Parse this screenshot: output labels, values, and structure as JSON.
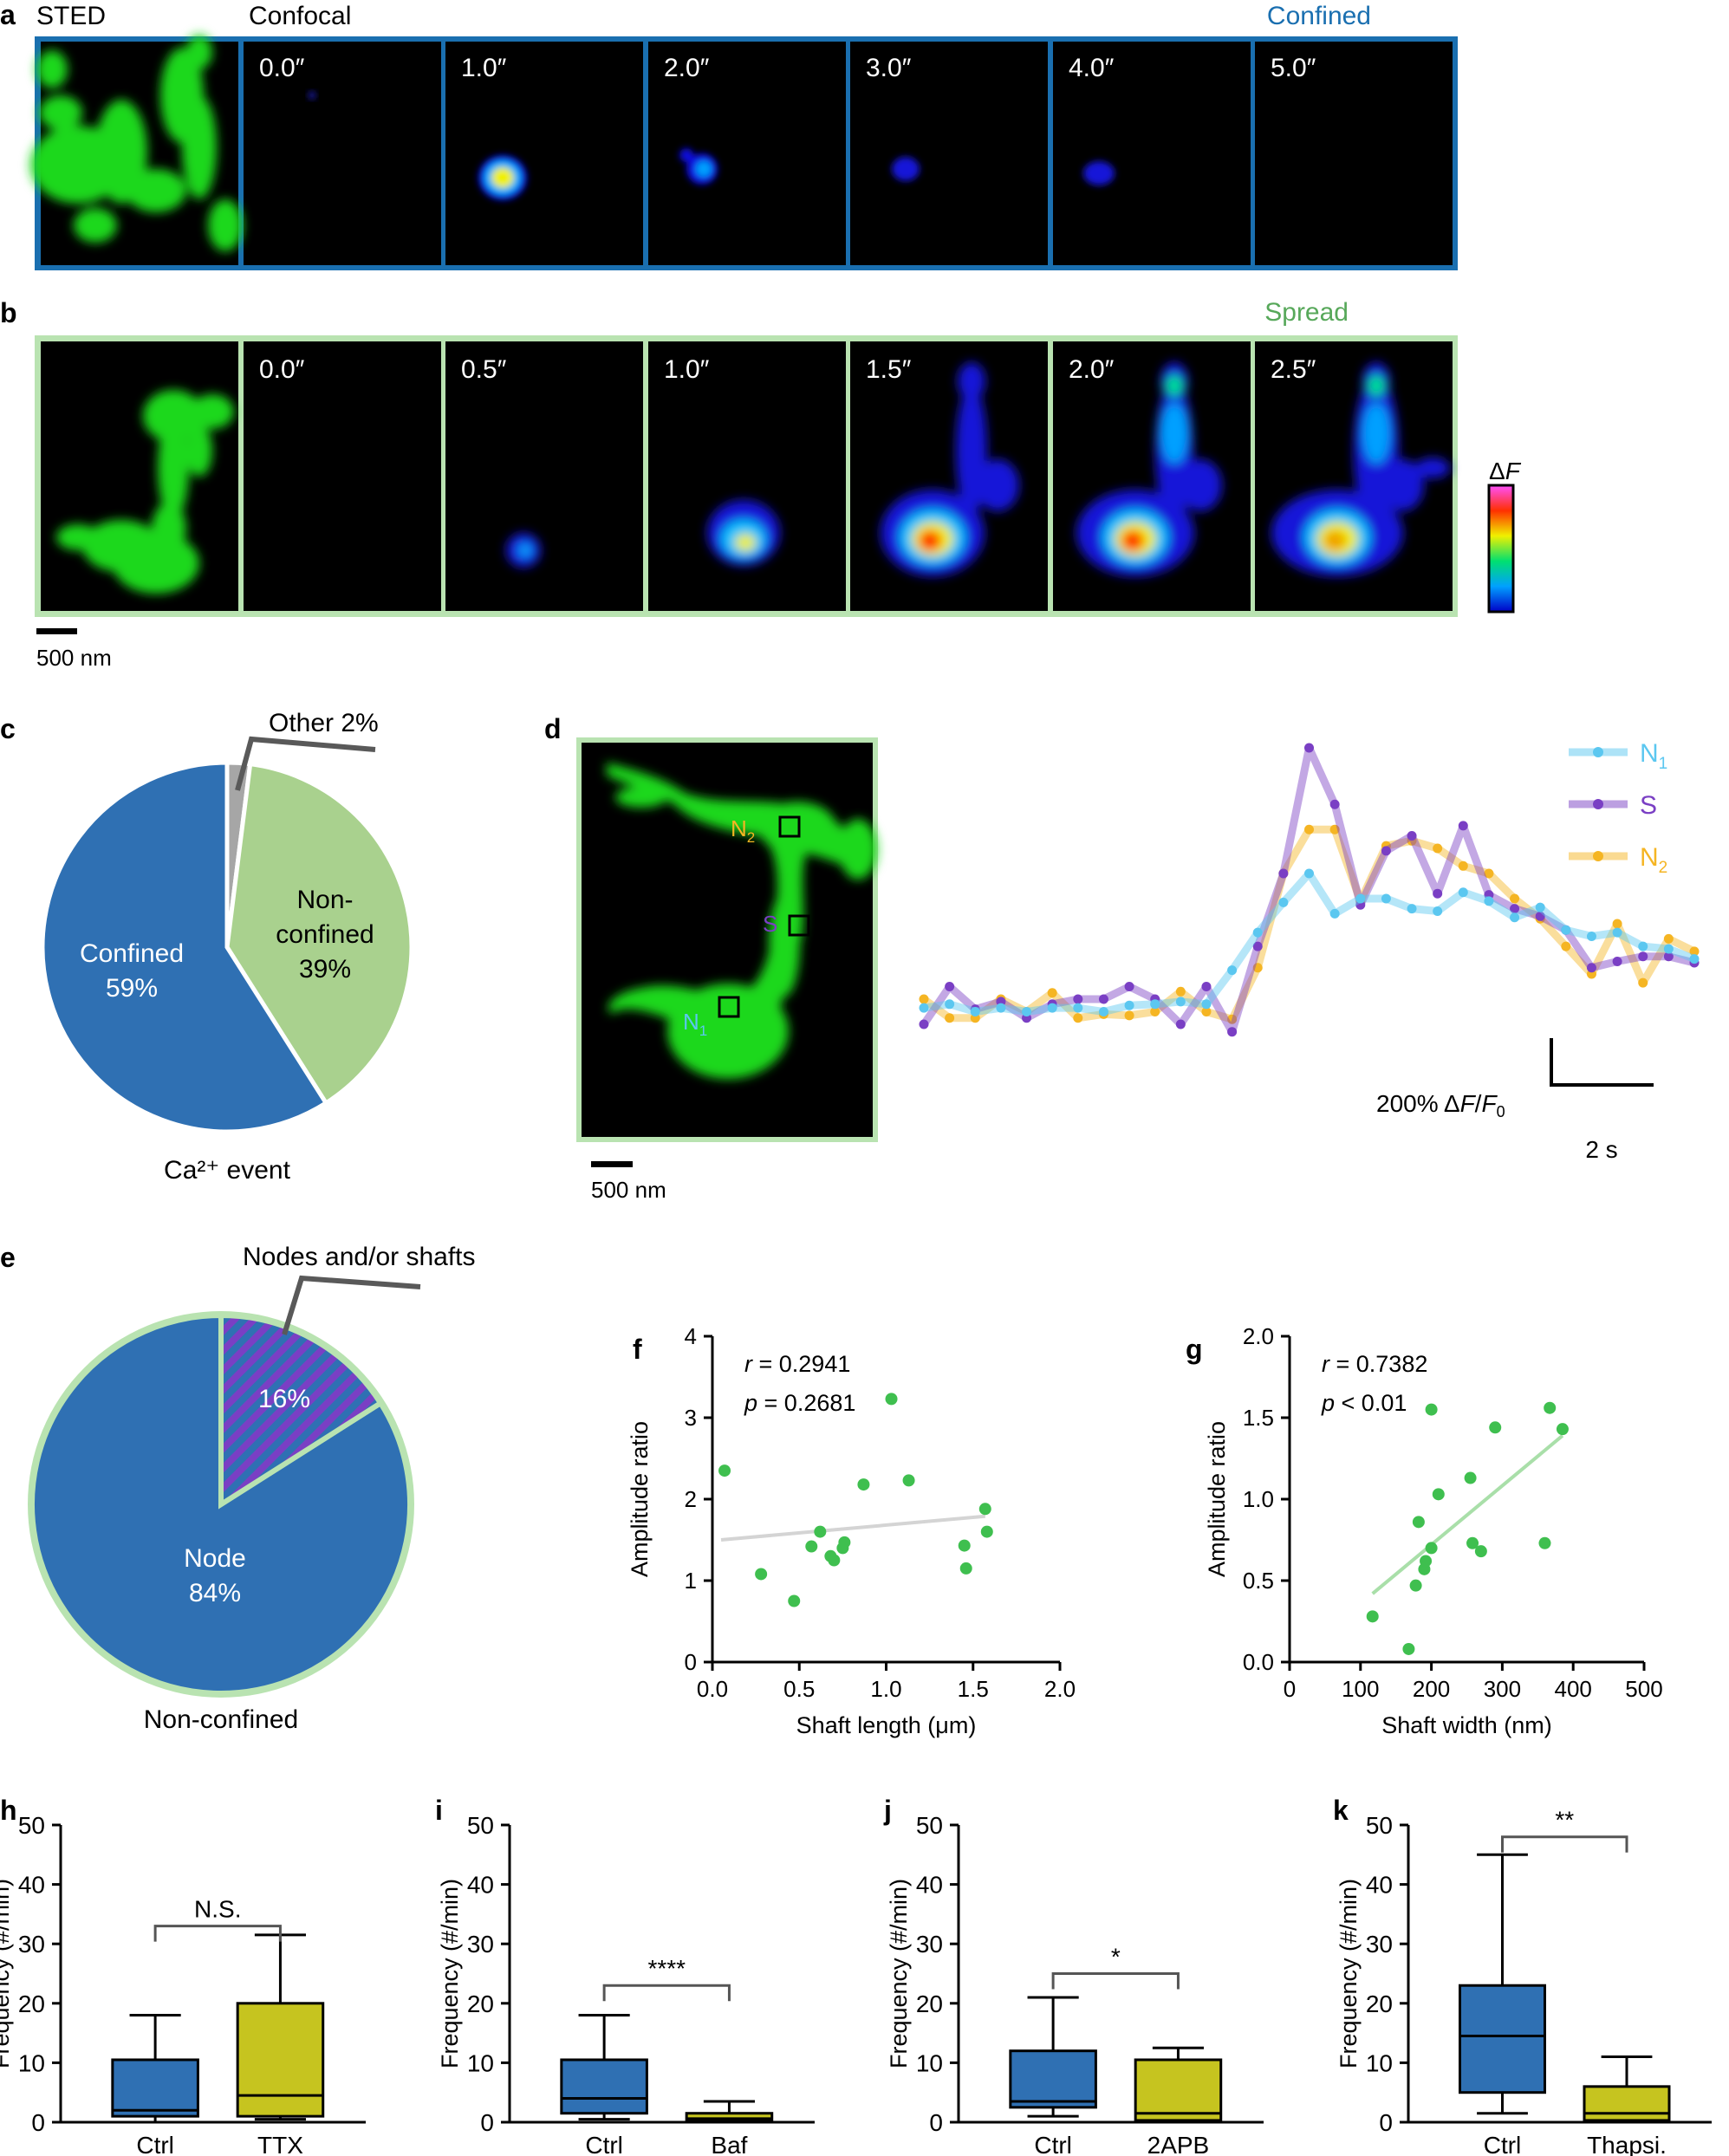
{
  "panel_letters": {
    "a": "a",
    "b": "b",
    "c": "c",
    "d": "d",
    "e": "e",
    "f": "f",
    "g": "g",
    "h": "h",
    "i": "i",
    "j": "j",
    "k": "k"
  },
  "panel_a": {
    "sted_label": "STED",
    "confocal_label": "Confocal",
    "tag": "Confined",
    "border_color": "#1a6fb0",
    "times": [
      "0.0″",
      "1.0″",
      "2.0″",
      "3.0″",
      "4.0″",
      "5.0″"
    ]
  },
  "panel_b": {
    "tag": "Spread",
    "border_color": "#b9e3b1",
    "times": [
      "0.0″",
      "0.5″",
      "1.0″",
      "1.5″",
      "2.0″",
      "2.5″"
    ],
    "scalebar": "500 nm",
    "colorbar_label": "ΔF"
  },
  "panel_c": {
    "outer_label": "Ca²⁺ event",
    "other_label": "Other 2%",
    "slices": [
      {
        "name": "Confined",
        "value": 59,
        "label_line1": "Confined",
        "label_line2": "59%",
        "color": "#2f70b3"
      },
      {
        "name": "Non-confined",
        "value": 39,
        "label_line1": "Non-",
        "label_line2": "confined",
        "label_line3": "39%",
        "color": "#a9d18e"
      },
      {
        "name": "Other",
        "value": 2,
        "color": "#a6a6a6"
      }
    ]
  },
  "panel_d": {
    "roi_labels": {
      "n2": "N",
      "n2_sub": "2",
      "s": "S",
      "n1": "N",
      "n1_sub": "1"
    },
    "scalebar": "500 nm",
    "legend": [
      {
        "name": "N1",
        "label": "N",
        "sub": "1",
        "color": "#5bc7f0"
      },
      {
        "name": "S",
        "label": "S",
        "sub": "",
        "color": "#7a3fc4"
      },
      {
        "name": "N2",
        "label": "N",
        "sub": "2",
        "color": "#f5b523"
      }
    ],
    "scale_y_label": "200% ΔF/F₀",
    "scale_x_label": "2 s",
    "chart_data": {
      "type": "line",
      "x": [
        0,
        1,
        2,
        3,
        4,
        5,
        6,
        7,
        8,
        9,
        10,
        11,
        12,
        13,
        14,
        15,
        16,
        17,
        18,
        19,
        20,
        21,
        22,
        23,
        24,
        25,
        26,
        27,
        28,
        29,
        30
      ],
      "series": [
        {
          "name": "N1",
          "values": [
            0.13,
            0.16,
            0.1,
            0.13,
            0.1,
            0.13,
            0.13,
            0.1,
            0.15,
            0.16,
            0.18,
            0.16,
            0.43,
            0.73,
            0.97,
            1.2,
            0.88,
            1.0,
            1.0,
            0.92,
            0.9,
            1.05,
            0.98,
            0.85,
            0.93,
            0.75,
            0.7,
            0.73,
            0.62,
            0.6,
            0.52
          ]
        },
        {
          "name": "S",
          "values": [
            0.0,
            0.3,
            0.12,
            0.18,
            0.05,
            0.16,
            0.2,
            0.2,
            0.3,
            0.2,
            0.0,
            0.3,
            -0.06,
            0.62,
            1.2,
            2.2,
            1.75,
            0.95,
            1.38,
            1.5,
            1.04,
            1.58,
            1.03,
            0.92,
            0.86,
            0.75,
            0.45,
            0.5,
            0.54,
            0.54,
            0.49
          ]
        },
        {
          "name": "N2",
          "values": [
            0.2,
            0.05,
            0.05,
            0.2,
            0.1,
            0.25,
            0.05,
            0.08,
            0.07,
            0.1,
            0.26,
            0.1,
            0.04,
            0.45,
            1.2,
            1.55,
            1.55,
            0.98,
            1.42,
            1.46,
            1.4,
            1.26,
            1.2,
            1.0,
            0.84,
            0.62,
            0.4,
            0.8,
            0.33,
            0.68,
            0.58
          ]
        }
      ]
    }
  },
  "panel_e": {
    "outer_label": "Non-confined",
    "callout_label": "Nodes and/or shafts",
    "slices": [
      {
        "name": "Node",
        "value": 84,
        "label_line1": "Node",
        "label_line2": "84%",
        "color": "#2f70b3"
      },
      {
        "name": "Nodes and/or shafts",
        "value": 16,
        "label": "16%",
        "color": "#7a3fc4"
      }
    ]
  },
  "panel_f": {
    "r_text": "r",
    "r_val": " = 0.2941",
    "p_text": "p",
    "p_val": " = 0.2681",
    "chart_data": {
      "type": "scatter",
      "xlabel": "Shaft length (μm)",
      "ylabel": "Amplitude ratio",
      "xlim": [
        0,
        2.0
      ],
      "ylim": [
        0,
        4
      ],
      "xticks": [
        "0.0",
        "0.5",
        "1.0",
        "1.5",
        "2.0"
      ],
      "yticks": [
        "0",
        "1",
        "2",
        "3",
        "4"
      ],
      "points": [
        [
          0.07,
          2.35
        ],
        [
          0.28,
          1.08
        ],
        [
          0.47,
          0.75
        ],
        [
          0.57,
          1.42
        ],
        [
          0.62,
          1.6
        ],
        [
          0.68,
          1.3
        ],
        [
          0.7,
          1.25
        ],
        [
          0.75,
          1.4
        ],
        [
          0.76,
          1.47
        ],
        [
          0.87,
          2.18
        ],
        [
          1.03,
          3.23
        ],
        [
          1.13,
          2.23
        ],
        [
          1.45,
          1.43
        ],
        [
          1.46,
          1.15
        ],
        [
          1.57,
          1.88
        ],
        [
          1.58,
          1.6
        ]
      ],
      "fit": {
        "x": [
          0.05,
          1.57
        ],
        "y": [
          1.5,
          1.79
        ]
      }
    }
  },
  "panel_g": {
    "r_text": "r",
    "r_val": " = 0.7382",
    "p_text": "p",
    "p_val": " <  0.01",
    "chart_data": {
      "type": "scatter",
      "xlabel": "Shaft width (nm)",
      "ylabel": "Amplitude ratio",
      "xlim": [
        0,
        500
      ],
      "ylim": [
        0,
        2.0
      ],
      "xticks": [
        "0",
        "100",
        "200",
        "300",
        "400",
        "500"
      ],
      "yticks": [
        "0.0",
        "0.5",
        "1.0",
        "1.5",
        "2.0"
      ],
      "points": [
        [
          117,
          0.28
        ],
        [
          168,
          0.08
        ],
        [
          178,
          0.47
        ],
        [
          182,
          0.86
        ],
        [
          190,
          0.57
        ],
        [
          192,
          0.62
        ],
        [
          200,
          0.7
        ],
        [
          200,
          1.55
        ],
        [
          210,
          1.03
        ],
        [
          255,
          1.13
        ],
        [
          258,
          0.73
        ],
        [
          270,
          0.68
        ],
        [
          290,
          1.44
        ],
        [
          360,
          0.73
        ],
        [
          367,
          1.56
        ],
        [
          385,
          1.43
        ]
      ],
      "fit": {
        "x": [
          117,
          385
        ],
        "y": [
          0.42,
          1.39
        ]
      }
    }
  },
  "box_charts": [
    {
      "id": "h",
      "ylabel": "Frequency (#/min)",
      "ylim": [
        0,
        50
      ],
      "yticks": [
        "0",
        "10",
        "20",
        "30",
        "40",
        "50"
      ],
      "categories": [
        "Ctrl",
        "TTX"
      ],
      "sig": "N.S.",
      "sig_level": 33,
      "boxes": [
        {
          "min": 0,
          "q1": 1,
          "median": 2,
          "q3": 10.5,
          "max": 18,
          "color": "#2f70b3"
        },
        {
          "min": 0.5,
          "q1": 1,
          "median": 4.5,
          "q3": 20,
          "max": 31.5,
          "color": "#c6c41f"
        }
      ]
    },
    {
      "id": "i",
      "ylabel": "Frequency (#/min)",
      "ylim": [
        0,
        50
      ],
      "yticks": [
        "0",
        "10",
        "20",
        "30",
        "40",
        "50"
      ],
      "categories": [
        "Ctrl",
        "Baf"
      ],
      "sig": "****",
      "sig_level": 23,
      "boxes": [
        {
          "min": 0.5,
          "q1": 1.5,
          "median": 4,
          "q3": 10.5,
          "max": 18,
          "color": "#2f70b3"
        },
        {
          "min": 0,
          "q1": 0.2,
          "median": 0.6,
          "q3": 1.5,
          "max": 3.5,
          "color": "#c6c41f"
        }
      ]
    },
    {
      "id": "j",
      "ylabel": "Frequency (#/min)",
      "ylim": [
        0,
        50
      ],
      "yticks": [
        "0",
        "10",
        "20",
        "30",
        "40",
        "50"
      ],
      "categories": [
        "Ctrl",
        "2APB"
      ],
      "sig": "*",
      "sig_level": 25,
      "boxes": [
        {
          "min": 1,
          "q1": 2.5,
          "median": 3.5,
          "q3": 12,
          "max": 21,
          "color": "#2f70b3"
        },
        {
          "min": 0,
          "q1": 0.3,
          "median": 1.5,
          "q3": 10.5,
          "max": 12.5,
          "color": "#c6c41f"
        }
      ]
    },
    {
      "id": "k",
      "ylabel": "Frequency (#/min)",
      "ylim": [
        0,
        50
      ],
      "yticks": [
        "0",
        "10",
        "20",
        "30",
        "40",
        "50"
      ],
      "categories": [
        "Ctrl",
        "Thapsi."
      ],
      "sig": "**",
      "sig_level": 48,
      "boxes": [
        {
          "min": 1.5,
          "q1": 5,
          "median": 14.5,
          "q3": 23,
          "max": 45,
          "color": "#2f70b3"
        },
        {
          "min": 0,
          "q1": 0.3,
          "median": 1.5,
          "q3": 6,
          "max": 11,
          "color": "#c6c41f"
        }
      ]
    }
  ]
}
